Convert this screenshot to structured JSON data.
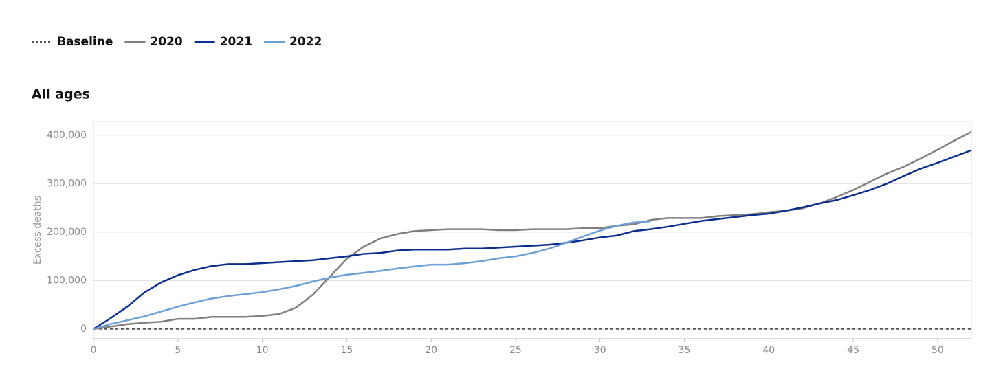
{
  "chart_data": {
    "type": "line",
    "subtitle": "All ages",
    "y_label": "Excess deaths",
    "x": [
      0,
      1,
      2,
      3,
      4,
      5,
      6,
      7,
      8,
      9,
      10,
      11,
      12,
      13,
      14,
      15,
      16,
      17,
      18,
      19,
      20,
      21,
      22,
      23,
      24,
      25,
      26,
      27,
      28,
      29,
      30,
      31,
      32,
      33,
      34,
      35,
      36,
      37,
      38,
      39,
      40,
      41,
      42,
      43,
      44,
      45,
      46,
      47,
      48,
      49,
      50,
      51,
      52
    ],
    "series": [
      {
        "name": "Baseline",
        "color": "#555555",
        "dashed": true,
        "values": [
          0,
          0,
          0,
          0,
          0,
          0,
          0,
          0,
          0,
          0,
          0,
          0,
          0,
          0,
          0,
          0,
          0,
          0,
          0,
          0,
          0,
          0,
          0,
          0,
          0,
          0,
          0,
          0,
          0,
          0,
          0,
          0,
          0,
          0,
          0,
          0,
          0,
          0,
          0,
          0,
          0,
          0,
          0,
          0,
          0,
          0,
          0,
          0,
          0,
          0,
          0,
          0,
          0
        ]
      },
      {
        "name": "2020",
        "color": "#7f7f7f",
        "values": [
          0,
          5000,
          10000,
          13000,
          15000,
          21000,
          21000,
          25000,
          25000,
          25000,
          27000,
          31000,
          44000,
          71000,
          108000,
          145000,
          170000,
          187000,
          196000,
          202000,
          204000,
          206000,
          206000,
          206000,
          204000,
          204000,
          206000,
          206000,
          206000,
          208000,
          208000,
          213000,
          216000,
          225000,
          229000,
          229000,
          229000,
          233000,
          235000,
          237000,
          241000,
          244000,
          249000,
          259000,
          272000,
          287000,
          304000,
          321000,
          335000,
          352000,
          370000,
          389000,
          407000
        ]
      },
      {
        "name": "2021",
        "color": "#0b2e8c",
        "values": [
          0,
          22000,
          46000,
          75000,
          96000,
          111000,
          122000,
          130000,
          134000,
          134000,
          136000,
          138000,
          140000,
          142000,
          146000,
          150000,
          155000,
          157000,
          162000,
          164000,
          164000,
          164000,
          166000,
          166000,
          168000,
          170000,
          172000,
          174000,
          178000,
          183000,
          189000,
          193000,
          202000,
          206000,
          211000,
          217000,
          223000,
          227000,
          231000,
          235000,
          238000,
          244000,
          251000,
          259000,
          266000,
          276000,
          287000,
          300000,
          316000,
          331000,
          343000,
          356000,
          369000
        ]
      },
      {
        "name": "2022",
        "color": "#6d9fd6",
        "values": [
          0,
          10000,
          18000,
          26000,
          36000,
          46000,
          55000,
          63000,
          68000,
          72000,
          76000,
          82000,
          89000,
          98000,
          106000,
          112000,
          116000,
          120000,
          125000,
          129000,
          133000,
          133000,
          136000,
          140000,
          146000,
          150000,
          157000,
          166000,
          178000,
          191000,
          203000,
          213000,
          220000,
          222000,
          null,
          null,
          null,
          null,
          null,
          null,
          null,
          null,
          null,
          null,
          null,
          null,
          null,
          null,
          null,
          null,
          null,
          null,
          null
        ]
      }
    ],
    "xlim": [
      0,
      52
    ],
    "xticks": [
      0,
      5,
      10,
      15,
      20,
      25,
      30,
      35,
      40,
      45,
      50
    ],
    "ylim": [
      -20000,
      428000
    ],
    "yticks": [
      0,
      {
        "value": 100000,
        "label": "100,000"
      },
      {
        "value": 200000,
        "label": "200,000"
      },
      {
        "value": 300000,
        "label": "300,000"
      },
      {
        "value": 400000,
        "label": "400,000"
      }
    ],
    "grid": true
  }
}
